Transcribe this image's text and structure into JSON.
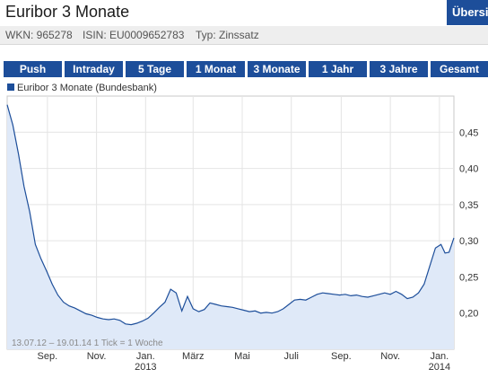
{
  "title": "Euribor 3 Monate",
  "overview_label": "Übersicht",
  "meta": {
    "wkn": "WKN: 965278",
    "isin": "ISIN: EU0009652783",
    "typ": "Typ: Zinssatz"
  },
  "tabs": [
    "Push",
    "Intraday",
    "5 Tage",
    "1 Monat",
    "3 Monate",
    "1 Jahr",
    "3 Jahre",
    "Gesamt"
  ],
  "colors": {
    "accent": "#1d4e9a",
    "fill": "#dfe9f8"
  },
  "chart_data": {
    "type": "area",
    "series": [
      {
        "name": "Euribor 3 Monate (Bundesbank)",
        "points": [
          [
            "2012-07-13",
            0.488
          ],
          [
            "2012-07-20",
            0.46
          ],
          [
            "2012-07-27",
            0.42
          ],
          [
            "2012-08-03",
            0.375
          ],
          [
            "2012-08-10",
            0.34
          ],
          [
            "2012-08-17",
            0.295
          ],
          [
            "2012-08-24",
            0.275
          ],
          [
            "2012-08-31",
            0.258
          ],
          [
            "2012-09-07",
            0.24
          ],
          [
            "2012-09-14",
            0.225
          ],
          [
            "2012-09-21",
            0.215
          ],
          [
            "2012-09-28",
            0.21
          ],
          [
            "2012-10-05",
            0.207
          ],
          [
            "2012-10-12",
            0.203
          ],
          [
            "2012-10-19",
            0.199
          ],
          [
            "2012-10-26",
            0.197
          ],
          [
            "2012-11-02",
            0.194
          ],
          [
            "2012-11-09",
            0.192
          ],
          [
            "2012-11-16",
            0.191
          ],
          [
            "2012-11-23",
            0.192
          ],
          [
            "2012-11-30",
            0.19
          ],
          [
            "2012-12-07",
            0.185
          ],
          [
            "2012-12-14",
            0.184
          ],
          [
            "2012-12-21",
            0.186
          ],
          [
            "2012-12-28",
            0.189
          ],
          [
            "2013-01-04",
            0.193
          ],
          [
            "2013-01-11",
            0.2
          ],
          [
            "2013-01-18",
            0.208
          ],
          [
            "2013-01-25",
            0.215
          ],
          [
            "2013-02-01",
            0.233
          ],
          [
            "2013-02-08",
            0.228
          ],
          [
            "2013-02-15",
            0.203
          ],
          [
            "2013-02-22",
            0.223
          ],
          [
            "2013-03-01",
            0.206
          ],
          [
            "2013-03-08",
            0.202
          ],
          [
            "2013-03-15",
            0.205
          ],
          [
            "2013-03-22",
            0.214
          ],
          [
            "2013-03-29",
            0.212
          ],
          [
            "2013-04-05",
            0.21
          ],
          [
            "2013-04-12",
            0.209
          ],
          [
            "2013-04-19",
            0.208
          ],
          [
            "2013-04-26",
            0.206
          ],
          [
            "2013-05-03",
            0.204
          ],
          [
            "2013-05-10",
            0.202
          ],
          [
            "2013-05-17",
            0.203
          ],
          [
            "2013-05-24",
            0.2
          ],
          [
            "2013-05-31",
            0.201
          ],
          [
            "2013-06-07",
            0.2
          ],
          [
            "2013-06-14",
            0.202
          ],
          [
            "2013-06-21",
            0.206
          ],
          [
            "2013-06-28",
            0.212
          ],
          [
            "2013-07-05",
            0.218
          ],
          [
            "2013-07-12",
            0.219
          ],
          [
            "2013-07-19",
            0.218
          ],
          [
            "2013-07-26",
            0.222
          ],
          [
            "2013-08-02",
            0.226
          ],
          [
            "2013-08-09",
            0.228
          ],
          [
            "2013-08-16",
            0.227
          ],
          [
            "2013-08-23",
            0.226
          ],
          [
            "2013-08-30",
            0.225
          ],
          [
            "2013-09-06",
            0.226
          ],
          [
            "2013-09-13",
            0.224
          ],
          [
            "2013-09-20",
            0.225
          ],
          [
            "2013-09-27",
            0.223
          ],
          [
            "2013-10-04",
            0.222
          ],
          [
            "2013-10-11",
            0.224
          ],
          [
            "2013-10-18",
            0.226
          ],
          [
            "2013-10-25",
            0.228
          ],
          [
            "2013-11-01",
            0.226
          ],
          [
            "2013-11-08",
            0.23
          ],
          [
            "2013-11-15",
            0.226
          ],
          [
            "2013-11-22",
            0.22
          ],
          [
            "2013-11-29",
            0.222
          ],
          [
            "2013-12-06",
            0.228
          ],
          [
            "2013-12-13",
            0.24
          ],
          [
            "2013-12-20",
            0.265
          ],
          [
            "2013-12-27",
            0.29
          ],
          [
            "2014-01-03",
            0.295
          ],
          [
            "2014-01-08",
            0.283
          ],
          [
            "2014-01-13",
            0.284
          ],
          [
            "2014-01-19",
            0.304
          ]
        ]
      }
    ],
    "x_ticks": [
      {
        "date": "2012-09-01",
        "label": "Sep."
      },
      {
        "date": "2012-11-01",
        "label": "Nov."
      },
      {
        "date": "2013-01-01",
        "label": "Jan.",
        "year": "2013"
      },
      {
        "date": "2013-03-01",
        "label": "März"
      },
      {
        "date": "2013-05-01",
        "label": "Mai"
      },
      {
        "date": "2013-07-01",
        "label": "Juli"
      },
      {
        "date": "2013-09-01",
        "label": "Sep."
      },
      {
        "date": "2013-11-01",
        "label": "Nov."
      },
      {
        "date": "2014-01-01",
        "label": "Jan.",
        "year": "2014"
      }
    ],
    "y_ticks": [
      0.2,
      0.25,
      0.3,
      0.35,
      0.4,
      0.45
    ],
    "y_tick_labels": [
      "0,20",
      "0,25",
      "0,30",
      "0,35",
      "0,40",
      "0,45"
    ],
    "xlim": [
      "2012-07-13",
      "2014-01-19"
    ],
    "ylim": [
      0.15,
      0.5
    ],
    "footnote": "13.07.12 – 19.01.14   1 Tick = 1 Woche",
    "grid": true,
    "legend": "top-left"
  }
}
